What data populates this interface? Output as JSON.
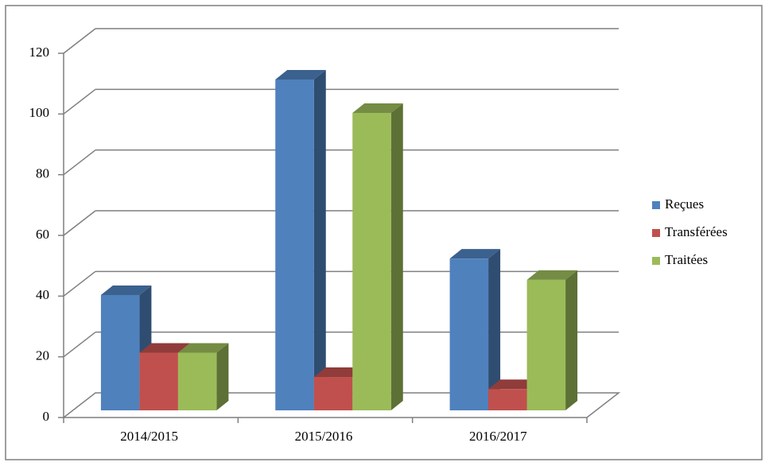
{
  "chart_data": {
    "type": "bar3d",
    "categories": [
      "2014/2015",
      "2015/2016",
      "2016/2017"
    ],
    "series": [
      {
        "name": "Reçues",
        "color": "#4f81bd",
        "values": [
          38,
          109,
          50
        ]
      },
      {
        "name": "Transférées",
        "color": "#c0504d",
        "values": [
          19,
          11,
          7
        ]
      },
      {
        "name": "Traitées",
        "color": "#9bbb59",
        "values": [
          19,
          98,
          43
        ]
      }
    ],
    "ylim": [
      0,
      120
    ],
    "yticks": [
      0,
      20,
      40,
      60,
      80,
      100,
      120
    ],
    "grid": true,
    "legend": "right"
  }
}
